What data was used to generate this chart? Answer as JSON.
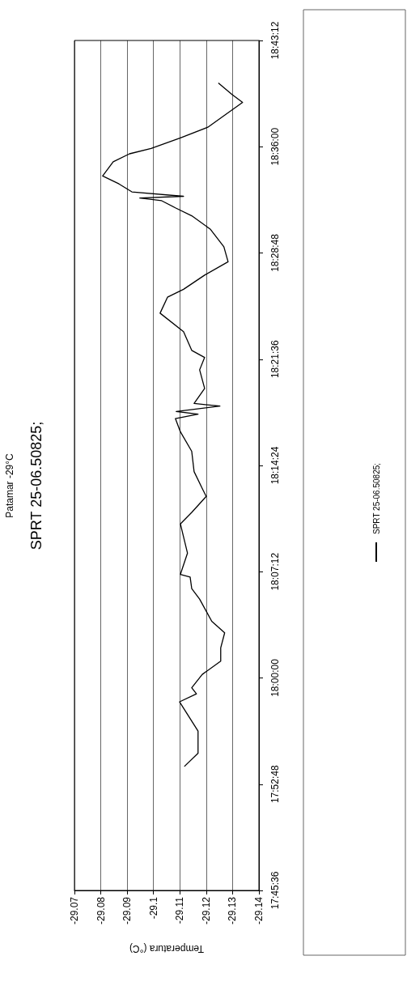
{
  "chart_data": {
    "type": "line",
    "title": "Patamar -29°C",
    "subtitle": "SPRT 25-06.50825;",
    "xlabel": "Temperatura (°C)",
    "series": [
      {
        "name": "SPRT 25-06.50825;",
        "color": "#000000",
        "x": [
          -29.1117,
          -29.1169,
          -29.1169,
          -29.1099,
          -29.1163,
          -29.1145,
          -29.1185,
          -29.1255,
          -29.1255,
          -29.127,
          -29.1221,
          -29.1175,
          -29.1145,
          -29.1139,
          -29.1102,
          -29.1129,
          -29.1102,
          -29.1145,
          -29.12,
          -29.1185,
          -29.1154,
          -29.1145,
          -29.1102,
          -29.1083,
          -29.1169,
          -29.1086,
          -29.1252,
          -29.1154,
          -29.1194,
          -29.1175,
          -29.1194,
          -29.1145,
          -29.1114,
          -29.1025,
          -29.1053,
          -29.1114,
          -29.1194,
          -29.1283,
          -29.1267,
          -29.1215,
          -29.1145,
          -29.1083,
          -29.1031,
          -29.0948,
          -29.1114,
          -29.0918,
          -29.0869,
          -29.0807,
          -29.0847,
          -29.0909,
          -29.0991,
          -29.1102,
          -29.1206,
          -29.1267,
          -29.1338,
          -29.1298,
          -29.1246
        ],
        "values": [
          17.9,
          17.915,
          17.94,
          17.973,
          17.982,
          17.989,
          18.004,
          18.019,
          18.034,
          18.051,
          18.064,
          18.089,
          18.101,
          18.114,
          18.117,
          18.141,
          18.174,
          18.187,
          18.205,
          18.214,
          18.233,
          18.256,
          18.278,
          18.293,
          18.298,
          18.301,
          18.307,
          18.31,
          18.327,
          18.348,
          18.362,
          18.37,
          18.391,
          18.412,
          18.43,
          18.439,
          18.455,
          18.47,
          18.487,
          18.507,
          18.522,
          18.531,
          18.539,
          18.542,
          18.544,
          18.549,
          18.558,
          18.567,
          18.583,
          18.592,
          18.598,
          18.61,
          18.622,
          18.635,
          18.65,
          18.659,
          18.672
        ]
      }
    ],
    "xlim": [
      -29.07,
      -29.14
    ],
    "xticks": [
      -29.07,
      -29.08,
      -29.09,
      -29.1,
      -29.11,
      -29.12,
      -29.13,
      -29.14
    ],
    "ylim": [
      17.76,
      18.72
    ],
    "yticks": [
      {
        "value": 17.76,
        "label": "17:45:36"
      },
      {
        "value": 17.88,
        "label": "17:52:48"
      },
      {
        "value": 18.0,
        "label": "18:00:00"
      },
      {
        "value": 18.12,
        "label": "18:07:12"
      },
      {
        "value": 18.24,
        "label": "18:14:24"
      },
      {
        "value": 18.36,
        "label": "18:21:36"
      },
      {
        "value": 18.48,
        "label": "18:28:48"
      },
      {
        "value": 18.6,
        "label": "18:36:00"
      },
      {
        "value": 18.72,
        "label": "18:43:12"
      }
    ],
    "grid": "x",
    "legend": "right",
    "marker": "none",
    "line_style": "solid"
  }
}
